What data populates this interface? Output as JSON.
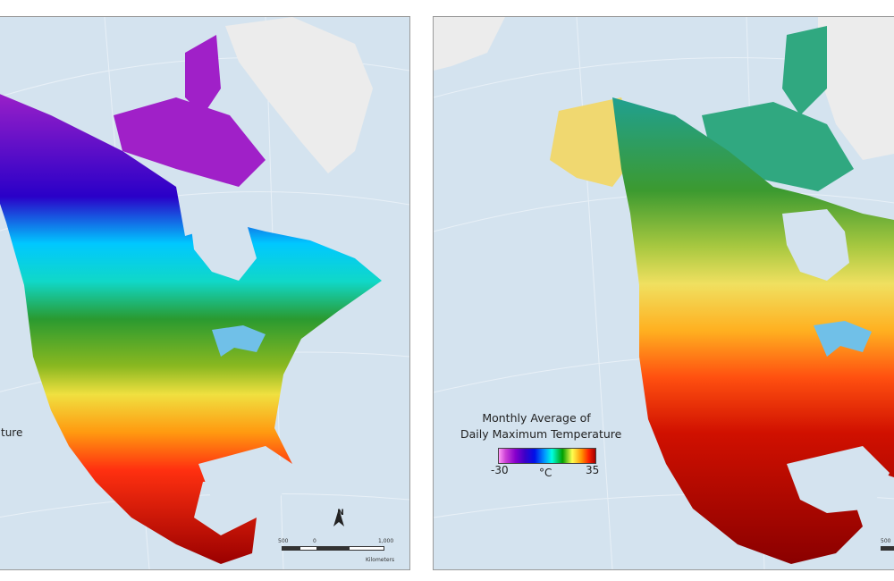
{
  "left_panel": {
    "legend_title_partial": "ture",
    "scalebar": {
      "ticks": [
        "500",
        "0",
        "1,000"
      ],
      "unit": "Kilometers"
    },
    "north_label": "N"
  },
  "right_panel": {
    "legend_title_line1": "Monthly Average of",
    "legend_title_line2": "Daily Maximum Temperature",
    "legend_min": "-30",
    "legend_unit": "°C",
    "legend_max": "35",
    "scalebar": {
      "ticks": [
        "500"
      ]
    }
  }
}
